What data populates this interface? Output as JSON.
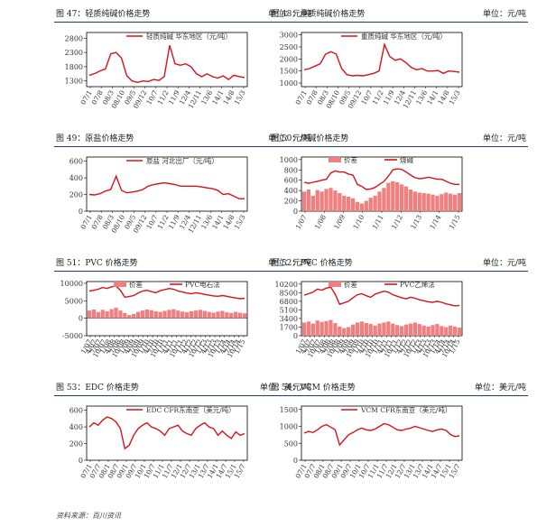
{
  "page": {
    "source_note": "资料来源：百川资讯"
  },
  "chart_data": [
    {
      "id": "c47",
      "type": "line",
      "title": "图 47：轻质纯碱价格走势",
      "unit": "单位：元/吨",
      "legend": "轻质纯碱  华东地区（元/吨）",
      "y_ticks": [
        2800,
        2300,
        1800,
        1300
      ],
      "ylim": [
        1100,
        3000
      ],
      "x_ticks": [
        "07/1",
        "07/8",
        "08/3",
        "08/10",
        "09/5",
        "09/12",
        "10/7",
        "11/2",
        "11/9",
        "12/4",
        "12/11",
        "13/6",
        "14/1",
        "14/8",
        "15/3"
      ],
      "series": [
        {
          "name": "轻质纯碱  华东地区（元/吨）",
          "color": "#d6121c",
          "values": [
            1500,
            1560,
            1650,
            1720,
            2250,
            2300,
            2100,
            1480,
            1300,
            1250,
            1300,
            1280,
            1350,
            1320,
            1450,
            2550,
            1900,
            1850,
            1900,
            1800,
            1550,
            1450,
            1550,
            1450,
            1400,
            1480,
            1350,
            1500,
            1450,
            1420
          ]
        }
      ]
    },
    {
      "id": "c48",
      "type": "line",
      "title": "图 48：重质纯碱价格走势",
      "unit": "单位：元/吨",
      "legend": "重质纯碱  华东地区（元/吨）",
      "y_ticks": [
        3000,
        2500,
        2000,
        1500,
        1000
      ],
      "ylim": [
        850,
        3100
      ],
      "x_ticks": [
        "07/1",
        "07/8",
        "08/3",
        "08/10",
        "09/5",
        "09/12",
        "10/7",
        "11/2",
        "11/9",
        "12/4",
        "12/11",
        "13/6",
        "14/1",
        "14/8",
        "15/3"
      ],
      "series": [
        {
          "name": "重质纯碱  华东地区（元/吨）",
          "color": "#d6121c",
          "values": [
            1550,
            1600,
            1700,
            1800,
            2200,
            2300,
            2200,
            1600,
            1350,
            1300,
            1320,
            1300,
            1350,
            1400,
            1500,
            2600,
            2100,
            1950,
            2000,
            1850,
            1650,
            1550,
            1600,
            1500,
            1500,
            1520,
            1400,
            1500,
            1480,
            1450
          ]
        }
      ]
    },
    {
      "id": "c49",
      "type": "line",
      "title": "图 49：原盐价格走势",
      "unit": "单位：元/吨",
      "legend": "原盐  河北出厂（元/吨）",
      "y_ticks": [
        600,
        400,
        200,
        0
      ],
      "ylim": [
        0,
        650
      ],
      "x_ticks": [
        "07/1",
        "07/8",
        "08/3",
        "08/10",
        "09/5",
        "09/12",
        "10/7",
        "11/2",
        "11/9",
        "12/4",
        "12/11",
        "13/6",
        "14/1",
        "14/8",
        "15/3"
      ],
      "series": [
        {
          "name": "原盐  河北出厂（元/吨）",
          "color": "#d6121c",
          "values": [
            200,
            195,
            210,
            240,
            260,
            420,
            250,
            220,
            230,
            240,
            260,
            300,
            320,
            330,
            340,
            330,
            320,
            300,
            300,
            300,
            300,
            290,
            280,
            270,
            250,
            200,
            210,
            180,
            150,
            150
          ]
        }
      ]
    },
    {
      "id": "c50",
      "type": "area",
      "title": "图 50：烧碱价格走势",
      "unit": "单位：元/吨",
      "y_ticks": [
        1000,
        800,
        600,
        400,
        200,
        0
      ],
      "ylim": [
        0,
        1050
      ],
      "x_ticks": [
        "1/07",
        "1/08",
        "1/09",
        "1/10",
        "1/11",
        "1/12",
        "1/13",
        "1/14",
        "1/15"
      ],
      "x_ticks_full": [
        "1/07",
        "1/08",
        "1/09",
        "1/10",
        "1/11",
        "1/12",
        "1/13",
        "1/14",
        "1/15",
        "1/16",
        "1/17",
        "1/18",
        "1/19",
        "1/20",
        "1/21",
        "1/22",
        "1/23",
        "1/24",
        "1/25",
        "1/26",
        "1/27",
        "1/28"
      ],
      "series": [
        {
          "name": "价差",
          "kind": "bar",
          "color": "#f08080",
          "values": [
            380,
            420,
            300,
            410,
            380,
            430,
            450,
            400,
            350,
            300,
            280,
            250,
            180,
            150,
            200,
            260,
            300,
            380,
            450,
            550,
            580,
            560,
            520,
            480,
            420,
            380,
            360,
            350,
            340,
            320,
            300,
            330,
            360,
            340,
            320,
            350
          ]
        },
        {
          "name": "烧碱",
          "kind": "line",
          "color": "#d6121c",
          "values": [
            560,
            540,
            560,
            580,
            600,
            620,
            740,
            780,
            760,
            760,
            720,
            700,
            520,
            480,
            420,
            430,
            460,
            520,
            580,
            680,
            800,
            820,
            810,
            760,
            700,
            650,
            630,
            640,
            660,
            640,
            620,
            620,
            580,
            540,
            520,
            520
          ]
        }
      ]
    },
    {
      "id": "c51",
      "type": "area",
      "title": "图 51：PVC 价格走势",
      "unit": "单位：元/吨",
      "y_ticks": [
        10000,
        5000,
        0,
        -5000
      ],
      "ylim": [
        -5000,
        10500
      ],
      "x_ticks": [
        "1/07",
        "4/07",
        "7/07",
        "10/07",
        "1/08",
        "4/08",
        "7/08",
        "10/08",
        "1/09",
        "4/09",
        "7/09",
        "10/09",
        "1/10",
        "4/10",
        "7/10",
        "10/10",
        "1/11",
        "4/11",
        "7/11",
        "10/11",
        "1/12",
        "4/12",
        "7/12",
        "10/12",
        "1/13",
        "4/13",
        "7/13",
        "10/13",
        "1/14",
        "4/14",
        "7/14",
        "10/14",
        "1/15"
      ],
      "series": [
        {
          "name": "价差",
          "kind": "bar",
          "color": "#f08080",
          "values": [
            2200,
            2500,
            1800,
            2400,
            2000,
            2600,
            3000,
            2200,
            1500,
            900,
            1200,
            1800,
            2200,
            2500,
            2300,
            2000,
            1800,
            2100,
            2400,
            2600,
            2200,
            1900,
            1700,
            2000,
            2200,
            2400,
            2100,
            1800,
            1600,
            1900,
            2100,
            1700,
            1500,
            1800,
            1600,
            1400
          ]
        },
        {
          "name": "PVC电石法",
          "kind": "line",
          "color": "#d6121c",
          "values": [
            7800,
            8000,
            8300,
            8800,
            8500,
            9000,
            9200,
            8000,
            6000,
            6200,
            6500,
            7200,
            7800,
            8000,
            7600,
            7300,
            7900,
            8200,
            8500,
            8300,
            7800,
            7500,
            7200,
            7000,
            7300,
            7100,
            6800,
            6600,
            6400,
            6300,
            6500,
            6300,
            6000,
            5800,
            5600,
            5700
          ]
        }
      ]
    },
    {
      "id": "c52",
      "type": "area",
      "title": "图 52：PVC 价格走势",
      "unit": "单位：元/吨",
      "y_ticks": [
        10200,
        8500,
        6800,
        5100,
        3400,
        1700,
        0
      ],
      "ylim": [
        0,
        10700
      ],
      "x_ticks": [
        "1/07",
        "4/07",
        "7/07",
        "10/07",
        "1/08",
        "4/08",
        "7/08",
        "10/08",
        "1/09",
        "4/09",
        "7/09",
        "10/09",
        "1/10",
        "4/10",
        "7/10",
        "10/10",
        "1/11",
        "4/11",
        "7/11",
        "10/11",
        "1/12",
        "4/12",
        "7/12",
        "10/12",
        "1/13",
        "4/13",
        "7/13",
        "10/13",
        "1/14",
        "4/14",
        "7/14",
        "10/14",
        "1/15"
      ],
      "series": [
        {
          "name": "价差",
          "kind": "bar",
          "color": "#f08080",
          "values": [
            2600,
            2800,
            2400,
            3000,
            2700,
            2900,
            3100,
            2500,
            1800,
            1500,
            1700,
            2200,
            2600,
            2800,
            2500,
            2300,
            2000,
            2400,
            2600,
            2800,
            2400,
            2100,
            1900,
            2200,
            2400,
            2600,
            2300,
            2000,
            1800,
            2100,
            2300,
            1900,
            1700,
            2000,
            1800,
            1600
          ]
        },
        {
          "name": "PVC乙烯法",
          "kind": "line",
          "color": "#d6121c",
          "values": [
            8000,
            8300,
            8600,
            9200,
            9000,
            9400,
            9600,
            8200,
            6200,
            6500,
            6800,
            7500,
            8100,
            8300,
            7900,
            7600,
            8200,
            8500,
            8800,
            8600,
            8100,
            7800,
            7500,
            7300,
            7600,
            7400,
            7100,
            6900,
            6700,
            6600,
            6800,
            6600,
            6300,
            6100,
            5900,
            6000
          ]
        }
      ]
    },
    {
      "id": "c53",
      "type": "line",
      "title": "图 53：EDC 价格走势",
      "unit": "单位：美元/吨",
      "legend": "EDC CFR东南亚（美元/吨）",
      "y_ticks": [
        600,
        400,
        200,
        0
      ],
      "ylim": [
        0,
        650
      ],
      "x_ticks": [
        "07/1",
        "07/7",
        "08/1",
        "08/7",
        "09/1",
        "09/7",
        "10/1",
        "10/7",
        "11/1",
        "11/7",
        "12/1",
        "12/7",
        "13/1",
        "13/7",
        "14/1",
        "14/7",
        "15/1",
        "15/7"
      ],
      "series": [
        {
          "name": "EDC CFR东南亚（美元/吨）",
          "color": "#d6121c",
          "values": [
            400,
            450,
            420,
            480,
            520,
            500,
            460,
            380,
            140,
            180,
            300,
            380,
            420,
            450,
            400,
            380,
            350,
            300,
            380,
            400,
            420,
            350,
            320,
            300,
            380,
            420,
            450,
            400,
            380,
            300,
            350,
            300,
            260,
            340,
            300,
            320
          ]
        }
      ]
    },
    {
      "id": "c54",
      "type": "line",
      "title": "图 54：VCM 价格走势",
      "unit": "单位：美元/吨",
      "legend": "VCM CFR东南亚（美元/吨）",
      "y_ticks": [
        1500,
        1000,
        500,
        0
      ],
      "ylim": [
        0,
        1600
      ],
      "x_ticks": [
        "07/1",
        "07/7",
        "08/1",
        "08/7",
        "09/1",
        "09/7",
        "10/1",
        "10/7",
        "11/1",
        "11/7",
        "12/1",
        "12/7",
        "13/1",
        "13/7",
        "14/1",
        "14/7",
        "15/1",
        "15/7"
      ],
      "series": [
        {
          "name": "VCM CFR东南亚（美元/吨）",
          "color": "#d6121c",
          "values": [
            800,
            850,
            820,
            900,
            1000,
            1050,
            980,
            900,
            450,
            600,
            750,
            820,
            900,
            950,
            900,
            880,
            920,
            1000,
            1080,
            1050,
            980,
            900,
            880,
            920,
            950,
            1000,
            960,
            920,
            880,
            850,
            900,
            920,
            880,
            760,
            700,
            720
          ]
        }
      ]
    }
  ]
}
